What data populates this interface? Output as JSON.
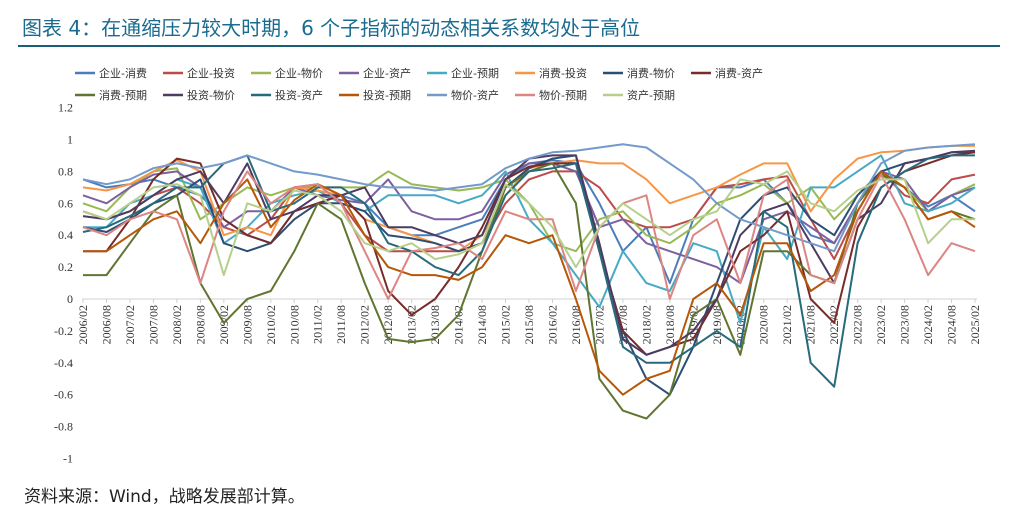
{
  "title": "图表 4：在通缩压力较大时期，6 个子指标的动态相关系数均处于高位",
  "source": "资料来源：Wind，战略发展部计算。",
  "chart_data": {
    "type": "line",
    "title": "",
    "xlabel": "",
    "ylabel": "",
    "ylim": [
      -1,
      1.2
    ],
    "yticks": [
      "1.2",
      "1",
      "0.8",
      "0.6",
      "0.4",
      "0.2",
      "0",
      "-0.2",
      "-0.4",
      "-0.6",
      "-0.8",
      "-1"
    ],
    "ytick_values": [
      1.2,
      1,
      0.8,
      0.6,
      0.4,
      0.2,
      0,
      -0.2,
      -0.4,
      -0.6,
      -0.8,
      -1
    ],
    "grid": false,
    "legend_position": "top",
    "x": [
      "2006/02",
      "2006/08",
      "2007/02",
      "2007/08",
      "2008/02",
      "2008/08",
      "2009/02",
      "2009/08",
      "2010/02",
      "2010/08",
      "2011/02",
      "2011/08",
      "2012/02",
      "2012/08",
      "2013/02",
      "2013/08",
      "2014/02",
      "2014/08",
      "2015/02",
      "2015/08",
      "2016/02",
      "2016/08",
      "2017/02",
      "2017/08",
      "2018/02",
      "2018/08",
      "2019/02",
      "2019/08",
      "2020/02",
      "2020/08",
      "2021/02",
      "2021/08",
      "2022/02",
      "2022/08",
      "2023/02",
      "2023/08",
      "2024/02",
      "2024/08",
      "2025/02"
    ],
    "series": [
      {
        "name": "企业-消费",
        "color": "#4a7ebb",
        "values": [
          0.75,
          0.7,
          0.72,
          0.75,
          0.7,
          0.65,
          0.5,
          0.4,
          0.35,
          0.55,
          0.6,
          0.65,
          0.6,
          0.45,
          0.4,
          0.4,
          0.45,
          0.5,
          0.75,
          0.85,
          0.87,
          0.85,
          0.6,
          0.3,
          0.45,
          0.1,
          0.5,
          0.7,
          0.7,
          0.75,
          0.6,
          0.4,
          0.35,
          0.6,
          0.78,
          0.7,
          0.58,
          0.65,
          0.55
        ]
      },
      {
        "name": "企业-投资",
        "color": "#be4b48",
        "values": [
          0.55,
          0.5,
          0.55,
          0.65,
          0.7,
          0.6,
          0.45,
          0.4,
          0.5,
          0.7,
          0.72,
          0.6,
          0.4,
          0.3,
          0.3,
          0.3,
          0.3,
          0.35,
          0.6,
          0.75,
          0.8,
          0.8,
          0.7,
          0.5,
          0.45,
          0.45,
          0.5,
          0.7,
          0.72,
          0.75,
          0.77,
          0.5,
          0.25,
          0.55,
          0.8,
          0.65,
          0.6,
          0.75,
          0.78
        ]
      },
      {
        "name": "企业-物价",
        "color": "#98b954",
        "values": [
          0.6,
          0.55,
          0.7,
          0.8,
          0.82,
          0.5,
          0.6,
          0.7,
          0.65,
          0.7,
          0.7,
          0.7,
          0.7,
          0.8,
          0.72,
          0.7,
          0.68,
          0.7,
          0.75,
          0.6,
          0.35,
          0.3,
          0.5,
          0.55,
          0.4,
          0.35,
          0.45,
          0.6,
          0.65,
          0.72,
          0.6,
          0.7,
          0.5,
          0.65,
          0.8,
          0.7,
          0.55,
          0.65,
          0.72
        ]
      },
      {
        "name": "企业-资产",
        "color": "#7d60a0",
        "values": [
          0.65,
          0.6,
          0.7,
          0.78,
          0.8,
          0.7,
          0.45,
          0.55,
          0.55,
          0.7,
          0.65,
          0.62,
          0.6,
          0.75,
          0.55,
          0.5,
          0.5,
          0.55,
          0.78,
          0.85,
          0.85,
          0.8,
          0.45,
          0.5,
          0.35,
          0.3,
          0.25,
          0.2,
          0.1,
          0.5,
          0.55,
          0.45,
          0.35,
          0.6,
          0.8,
          0.75,
          0.55,
          0.65,
          0.7
        ]
      },
      {
        "name": "企业-预期",
        "color": "#46aac5",
        "values": [
          0.45,
          0.45,
          0.6,
          0.65,
          0.75,
          0.7,
          0.35,
          0.45,
          0.6,
          0.65,
          0.68,
          0.6,
          0.55,
          0.65,
          0.65,
          0.65,
          0.6,
          0.65,
          0.8,
          0.5,
          0.35,
          0.15,
          -0.05,
          0.3,
          0.1,
          0.05,
          0.35,
          0.3,
          -0.15,
          0.45,
          0.25,
          0.7,
          0.7,
          0.8,
          0.9,
          0.6,
          0.55,
          0.6,
          0.7
        ]
      },
      {
        "name": "消费-投资",
        "color": "#f79646",
        "values": [
          0.7,
          0.68,
          0.72,
          0.8,
          0.87,
          0.8,
          0.4,
          0.45,
          0.4,
          0.7,
          0.68,
          0.65,
          0.5,
          0.45,
          0.4,
          0.35,
          0.3,
          0.4,
          0.65,
          0.82,
          0.85,
          0.87,
          0.85,
          0.85,
          0.75,
          0.6,
          0.65,
          0.7,
          0.78,
          0.85,
          0.85,
          0.55,
          0.75,
          0.88,
          0.92,
          0.93,
          0.95,
          0.96,
          0.96
        ]
      },
      {
        "name": "消费-物价",
        "color": "#2c4d75",
        "values": [
          0.45,
          0.42,
          0.5,
          0.6,
          0.65,
          0.75,
          0.35,
          0.3,
          0.35,
          0.5,
          0.6,
          0.6,
          0.55,
          0.4,
          0.38,
          0.35,
          0.3,
          0.35,
          0.7,
          0.82,
          0.88,
          0.9,
          0.3,
          -0.2,
          -0.5,
          -0.6,
          -0.3,
          0.1,
          0.5,
          0.65,
          0.7,
          0.5,
          0.4,
          0.65,
          0.8,
          0.85,
          0.88,
          0.92,
          0.92
        ]
      },
      {
        "name": "消费-资产",
        "color": "#772c2a",
        "values": [
          0.3,
          0.3,
          0.5,
          0.75,
          0.88,
          0.85,
          0.5,
          0.4,
          0.35,
          0.55,
          0.6,
          0.65,
          0.5,
          0.05,
          -0.1,
          0.0,
          0.2,
          0.45,
          0.75,
          0.83,
          0.85,
          0.85,
          0.3,
          -0.2,
          -0.35,
          -0.3,
          -0.25,
          0.0,
          0.3,
          0.4,
          0.55,
          0.0,
          -0.15,
          0.45,
          0.7,
          0.8,
          0.85,
          0.9,
          0.92
        ]
      },
      {
        "name": "消费-预期",
        "color": "#5f7530",
        "values": [
          0.15,
          0.15,
          0.35,
          0.55,
          0.65,
          0.1,
          -0.15,
          0.0,
          0.05,
          0.3,
          0.6,
          0.5,
          0.1,
          -0.25,
          -0.27,
          -0.25,
          -0.1,
          0.3,
          0.7,
          0.8,
          0.85,
          0.6,
          -0.5,
          -0.7,
          -0.75,
          -0.6,
          -0.1,
          0.0,
          -0.35,
          0.3,
          0.3,
          0.15,
          0.1,
          0.6,
          0.78,
          0.7,
          0.5,
          0.55,
          0.5
        ]
      },
      {
        "name": "投资-物价",
        "color": "#4d3b62",
        "values": [
          0.52,
          0.5,
          0.55,
          0.65,
          0.75,
          0.8,
          0.6,
          0.85,
          0.5,
          0.55,
          0.65,
          0.65,
          0.7,
          0.45,
          0.45,
          0.4,
          0.35,
          0.4,
          0.75,
          0.88,
          0.9,
          0.9,
          0.35,
          -0.25,
          -0.35,
          -0.3,
          -0.2,
          0.0,
          0.4,
          0.55,
          0.6,
          0.35,
          0.1,
          0.5,
          0.6,
          0.85,
          0.88,
          0.92,
          0.93
        ]
      },
      {
        "name": "投资-资产",
        "color": "#276a7c",
        "values": [
          0.42,
          0.45,
          0.52,
          0.6,
          0.7,
          0.7,
          0.85,
          0.9,
          0.55,
          0.6,
          0.7,
          0.7,
          0.6,
          0.35,
          0.3,
          0.2,
          0.15,
          0.3,
          0.65,
          0.8,
          0.82,
          0.85,
          0.3,
          -0.3,
          -0.4,
          -0.4,
          -0.3,
          -0.2,
          -0.3,
          0.55,
          0.45,
          -0.4,
          -0.55,
          0.35,
          0.7,
          0.8,
          0.88,
          0.9,
          0.9
        ]
      },
      {
        "name": "投资-预期",
        "color": "#b65708",
        "values": [
          0.3,
          0.3,
          0.4,
          0.5,
          0.55,
          0.35,
          0.6,
          0.75,
          0.45,
          0.62,
          0.72,
          0.65,
          0.4,
          0.2,
          0.15,
          0.15,
          0.12,
          0.2,
          0.4,
          0.35,
          0.4,
          0.0,
          -0.45,
          -0.6,
          -0.5,
          -0.45,
          0.0,
          0.1,
          -0.1,
          0.35,
          0.35,
          0.05,
          0.15,
          0.55,
          0.8,
          0.7,
          0.5,
          0.55,
          0.45
        ]
      },
      {
        "name": "物价-资产",
        "color": "#729aca",
        "values": [
          0.75,
          0.72,
          0.75,
          0.82,
          0.85,
          0.82,
          0.85,
          0.9,
          0.85,
          0.8,
          0.78,
          0.75,
          0.72,
          0.7,
          0.7,
          0.68,
          0.7,
          0.72,
          0.82,
          0.88,
          0.92,
          0.93,
          0.95,
          0.97,
          0.95,
          0.85,
          0.75,
          0.6,
          0.5,
          0.45,
          0.4,
          0.35,
          0.3,
          0.6,
          0.85,
          0.93,
          0.95,
          0.96,
          0.97
        ]
      },
      {
        "name": "物价-预期",
        "color": "#dc8582",
        "values": [
          0.45,
          0.4,
          0.5,
          0.55,
          0.5,
          0.1,
          0.55,
          0.8,
          0.6,
          0.7,
          0.72,
          0.6,
          0.3,
          0.0,
          0.3,
          0.32,
          0.35,
          0.25,
          0.55,
          0.5,
          0.5,
          0.05,
          0.45,
          0.6,
          0.65,
          0.0,
          0.4,
          0.5,
          0.1,
          0.65,
          0.75,
          0.15,
          0.1,
          0.5,
          0.78,
          0.5,
          0.15,
          0.35,
          0.3
        ]
      },
      {
        "name": "资产-预期",
        "color": "#b5d08a",
        "values": [
          0.55,
          0.5,
          0.6,
          0.7,
          0.72,
          0.65,
          0.15,
          0.6,
          0.55,
          0.68,
          0.65,
          0.55,
          0.35,
          0.3,
          0.35,
          0.25,
          0.28,
          0.35,
          0.72,
          0.6,
          0.45,
          0.2,
          0.45,
          0.6,
          0.5,
          0.4,
          0.5,
          0.55,
          0.75,
          0.72,
          0.8,
          0.6,
          0.55,
          0.68,
          0.75,
          0.75,
          0.35,
          0.5,
          0.5
        ]
      }
    ]
  }
}
